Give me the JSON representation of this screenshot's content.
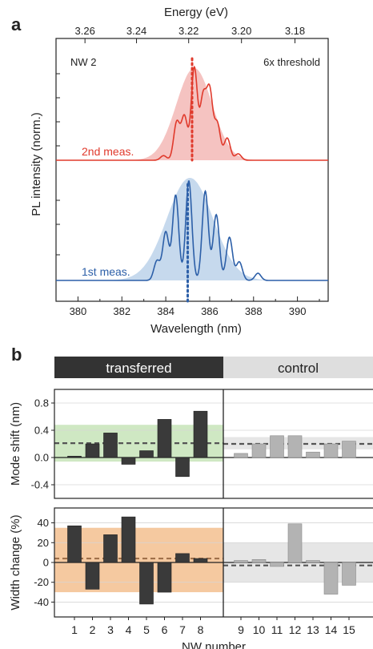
{
  "figure": {
    "panel_a_label": "a",
    "panel_b_label": "b"
  },
  "chart_data": [
    {
      "type": "line",
      "panel": "a",
      "top_axis_label": "Energy (eV)",
      "top_ticks": [
        "3.26",
        "3.24",
        "3.22",
        "3.20",
        "3.18"
      ],
      "top_tick_values": [
        3.26,
        3.24,
        3.22,
        3.2,
        3.18
      ],
      "xlabel": "Wavelength (nm)",
      "ylabel": "PL intensity (norm.)",
      "xlim": [
        379,
        391.4
      ],
      "x_ticks": [
        380,
        382,
        384,
        386,
        388,
        390
      ],
      "ann_left": "NW 2",
      "ann_right": "6x threshold",
      "series": [
        {
          "name": "2nd meas.",
          "color": "#e03a2c",
          "fill": "#f3b9b6",
          "dotted_line_x": 385.2,
          "envelope": {
            "center": 385.3,
            "sigma": 0.82
          },
          "peaks": [
            {
              "x": 383.9,
              "a": 0.05
            },
            {
              "x": 384.5,
              "a": 0.41
            },
            {
              "x": 384.85,
              "a": 0.47
            },
            {
              "x": 385.3,
              "a": 1.0
            },
            {
              "x": 385.7,
              "a": 0.66
            },
            {
              "x": 386.0,
              "a": 0.73
            },
            {
              "x": 386.35,
              "a": 0.39
            },
            {
              "x": 386.8,
              "a": 0.24
            },
            {
              "x": 387.3,
              "a": 0.07
            }
          ]
        },
        {
          "name": "1st meas.",
          "color": "#2c5fa8",
          "fill": "#bcd2ea",
          "dotted_line_x": 385.0,
          "envelope": {
            "center": 385.1,
            "sigma": 1.05
          },
          "peaks": [
            {
              "x": 383.6,
              "a": 0.19
            },
            {
              "x": 384.0,
              "a": 0.47
            },
            {
              "x": 384.45,
              "a": 0.83
            },
            {
              "x": 385.05,
              "a": 0.97
            },
            {
              "x": 385.8,
              "a": 0.87
            },
            {
              "x": 386.3,
              "a": 0.64
            },
            {
              "x": 386.9,
              "a": 0.42
            },
            {
              "x": 387.35,
              "a": 0.18
            },
            {
              "x": 388.2,
              "a": 0.07
            }
          ]
        }
      ]
    },
    {
      "type": "bar",
      "panel": "b-top",
      "groups": [
        "transferred",
        "control"
      ],
      "ylabel": "Mode shift (nm)",
      "ylim": [
        -0.6,
        1.0
      ],
      "yticks": [
        "0.8",
        "0.4",
        "0.0",
        "-0.4"
      ],
      "ytick_values": [
        0.8,
        0.4,
        0.0,
        -0.4
      ],
      "categories": [
        "1",
        "2",
        "3",
        "4",
        "5",
        "6",
        "7",
        "8",
        "9",
        "10",
        "11",
        "12",
        "13",
        "14",
        "15"
      ],
      "values": [
        0.02,
        0.2,
        0.36,
        -0.1,
        0.1,
        0.56,
        -0.28,
        0.68,
        0.06,
        0.2,
        0.32,
        0.32,
        0.08,
        0.2,
        0.24
      ],
      "bands": [
        {
          "group": "transferred",
          "range": [
            -0.06,
            0.48
          ],
          "mean": 0.21,
          "color": "#cfe8c3"
        },
        {
          "group": "control",
          "range": [
            0.12,
            0.3
          ],
          "mean": 0.2,
          "color": "#e6e6e6"
        }
      ]
    },
    {
      "type": "bar",
      "panel": "b-bottom",
      "ylabel": "Width change (%)",
      "xlabel": "NW number",
      "ylim": [
        -55,
        55
      ],
      "yticks": [
        "40",
        "20",
        "0",
        "-20",
        "-40"
      ],
      "ytick_values": [
        40,
        20,
        0,
        -20,
        -40
      ],
      "categories": [
        "1",
        "2",
        "3",
        "4",
        "5",
        "6",
        "7",
        "8",
        "9",
        "10",
        "11",
        "12",
        "13",
        "14",
        "15"
      ],
      "values": [
        37,
        -27,
        28,
        46,
        -42,
        -30,
        9,
        4,
        2,
        3,
        -4,
        39,
        2,
        -32,
        -23
      ],
      "bands": [
        {
          "group": "transferred",
          "range": [
            -30,
            35
          ],
          "mean": 4,
          "color": "#f5c9a0"
        },
        {
          "group": "control",
          "range": [
            -20,
            20
          ],
          "mean": -3,
          "color": "#e6e6e6"
        }
      ]
    }
  ]
}
